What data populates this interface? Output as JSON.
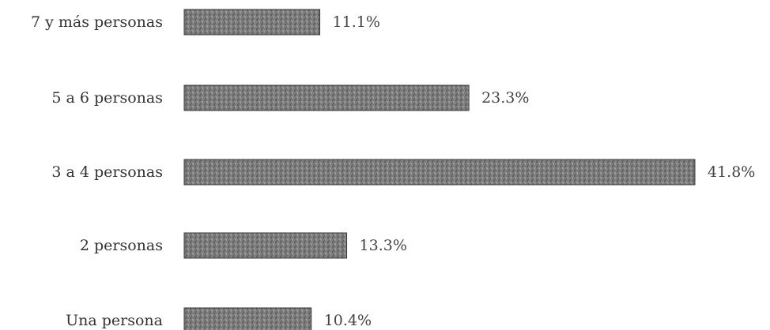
{
  "chart_data": {
    "type": "bar",
    "orientation": "horizontal",
    "categories": [
      "7 y más personas",
      "5 a 6 personas",
      "3 a 4 personas",
      "2 personas",
      "Una persona"
    ],
    "values": [
      11.1,
      23.3,
      41.8,
      13.3,
      10.4
    ],
    "value_labels": [
      "11.1%",
      "23.3%",
      "41.8%",
      "13.3%",
      "10.4%"
    ],
    "unit": "%",
    "xlim": [
      0,
      41.8
    ],
    "grid": false,
    "legend": "none",
    "colors": {
      "bar": "#7c7c7c",
      "bar_edge": "#3a3a3a",
      "text": "#333333"
    }
  }
}
